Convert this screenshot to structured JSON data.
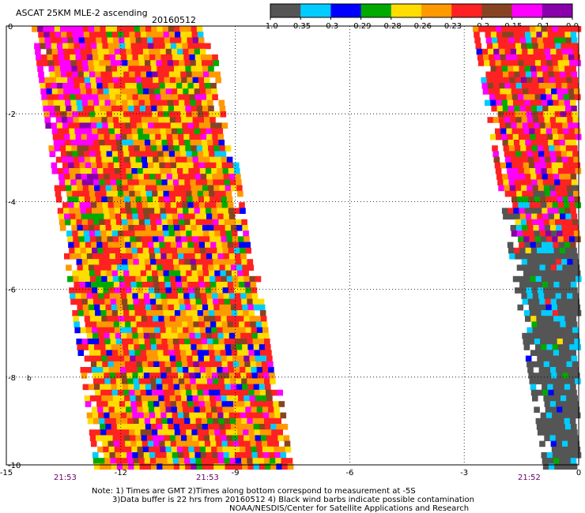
{
  "header": {
    "title": "ASCAT 25KM MLE-2 ascending",
    "date": "20160512"
  },
  "colorbar": {
    "colors": [
      "#555555",
      "#00ccff",
      "#0000ff",
      "#00aa00",
      "#ffdd00",
      "#ff9900",
      "#ff2222",
      "#884422",
      "#ff00ff",
      "#8800aa"
    ],
    "labels": [
      "-1.0",
      "-0.35",
      "-0.3",
      "-0.29",
      "-0.28",
      "-0.26",
      "-0.23",
      "-0.2",
      "-0.15",
      "-0.1",
      "0.0"
    ]
  },
  "map": {
    "x_ticks": [
      "-15",
      "-12",
      "-9",
      "-6",
      "-3",
      "0"
    ],
    "y_ticks": [
      "0",
      "-2",
      "-4",
      "-6",
      "-8",
      "-10"
    ],
    "x_range": [
      -15,
      0
    ],
    "y_range": [
      -10,
      0
    ],
    "side_mark": "b"
  },
  "times": [
    {
      "label": "21:53",
      "lon": -13.5
    },
    {
      "label": "21:53",
      "lon": -10.2
    },
    {
      "label": "21:52",
      "lon": -1.2
    }
  ],
  "notes": {
    "line1": "Note: 1) Times are GMT 2)Times along bottom correspond to measurement at -5S",
    "line2": "3)Data buffer is 22 hrs from 20160512 4) Black wind barbs indicate possible contamination",
    "line3": "NOAA/NESDIS/Center for Satellite Applications and Research"
  }
}
